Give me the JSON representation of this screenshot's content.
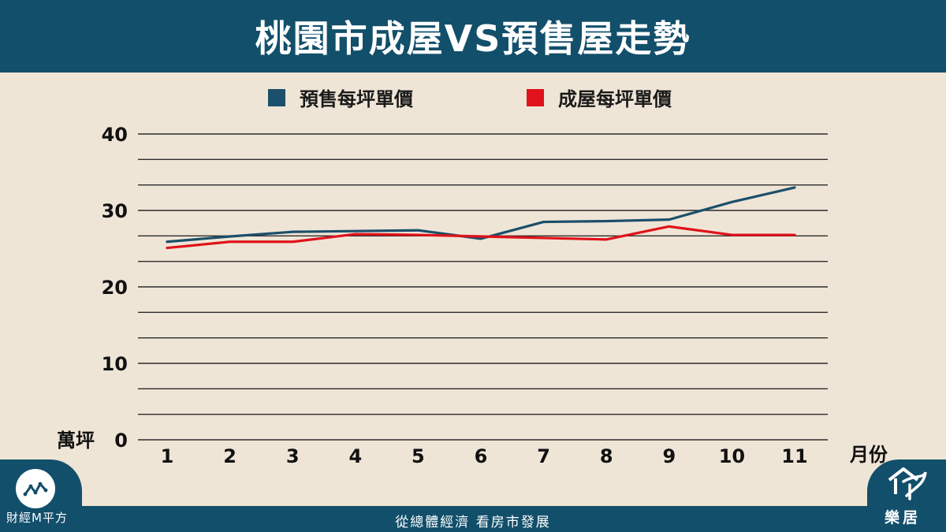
{
  "header": {
    "title": "桃園市成屋VS預售屋走勢"
  },
  "chart_data": {
    "type": "line",
    "title": "桃園市成屋VS預售屋走勢",
    "xlabel": "月份",
    "ylabel": "萬坪",
    "x": [
      1,
      2,
      3,
      4,
      5,
      6,
      7,
      8,
      9,
      10,
      11
    ],
    "x_tick_labels": [
      "1",
      "2",
      "3",
      "4",
      "5",
      "6",
      "7",
      "8",
      "9",
      "10",
      "11"
    ],
    "y_tick_labels": [
      "40",
      "30",
      "20",
      "10",
      "0"
    ],
    "ylim": [
      0,
      40
    ],
    "grid": true,
    "legend_position": "top",
    "series": [
      {
        "name": "預售每坪單價",
        "color": "#1b4f6b",
        "values": [
          25.9,
          26.6,
          27.2,
          27.3,
          27.4,
          26.3,
          28.5,
          28.6,
          28.8,
          31.1,
          33.0
        ]
      },
      {
        "name": "成屋每坪單價",
        "color": "#e0121b",
        "values": [
          25.1,
          25.9,
          25.9,
          26.9,
          26.8,
          26.6,
          26.4,
          26.2,
          27.9,
          26.8,
          26.8
        ]
      }
    ]
  },
  "footer": {
    "slogan": "從總體經濟 看房市發展",
    "brand_left": "財經M平方",
    "brand_right": "樂居"
  },
  "icons": {
    "left_logo": "line-trend-icon",
    "right_logo": "bird-house-icon"
  },
  "colors": {
    "header_bg": "#124f6b",
    "page_bg": "#efe5d6"
  }
}
